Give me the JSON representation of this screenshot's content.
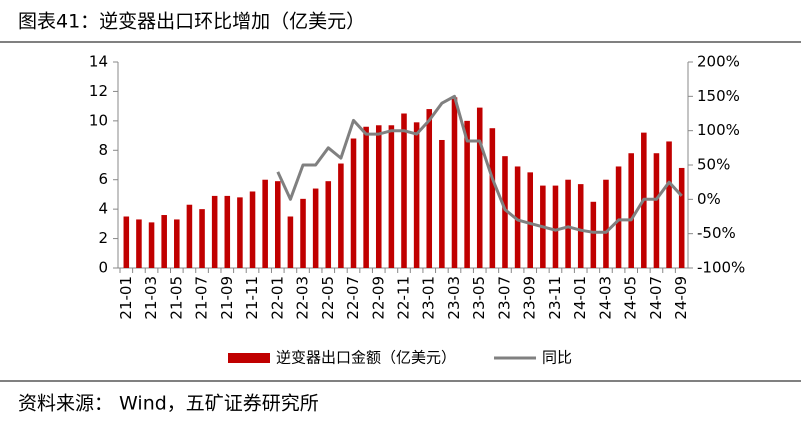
{
  "chart_data": {
    "type": "bar_line",
    "title": "图表41：逆变器出口环比增加（亿美元）",
    "source": "资料来源： Wind，五矿证券研究所",
    "categories": [
      "21-01",
      null,
      "21-03",
      null,
      "21-05",
      null,
      "21-07",
      null,
      "21-09",
      null,
      "21-11",
      null,
      "22-01",
      null,
      "22-03",
      null,
      "22-05",
      null,
      "22-07",
      null,
      "22-09",
      null,
      "22-11",
      null,
      "23-01",
      null,
      "23-03",
      null,
      "23-05",
      null,
      "23-07",
      null,
      "23-09",
      null,
      "23-11",
      null,
      "24-01",
      null,
      "24-03",
      null,
      "24-05",
      null,
      "24-07",
      null,
      "24-09"
    ],
    "series": [
      {
        "name": "逆变器出口金额（亿美元）",
        "color": "#c00000",
        "type": "bar",
        "values": [
          3.5,
          3.3,
          3.1,
          3.6,
          3.3,
          4.3,
          4.0,
          4.9,
          4.9,
          4.8,
          5.2,
          6.0,
          5.9,
          3.5,
          4.7,
          5.4,
          5.9,
          7.1,
          8.8,
          9.6,
          9.7,
          9.7,
          10.5,
          9.9,
          10.8,
          8.7,
          11.6,
          10.0,
          10.9,
          9.5,
          7.6,
          6.9,
          6.5,
          5.6,
          5.6,
          6.0,
          5.7,
          4.5,
          6.0,
          6.9,
          7.8,
          9.2,
          7.8,
          8.6,
          6.8
        ]
      },
      {
        "name": "同比",
        "color": "#808080",
        "type": "line",
        "axis": "y2",
        "values": [
          null,
          null,
          null,
          null,
          null,
          null,
          null,
          null,
          null,
          null,
          null,
          null,
          40,
          0,
          50,
          50,
          75,
          60,
          115,
          95,
          95,
          100,
          100,
          95,
          115,
          140,
          150,
          85,
          85,
          30,
          -15,
          -30,
          -35,
          -40,
          -45,
          -40,
          -45,
          -48,
          -48,
          -30,
          -30,
          0,
          0,
          25,
          5
        ]
      }
    ],
    "ylim": [
      0,
      14
    ],
    "yticks": [
      0,
      2,
      4,
      6,
      8,
      10,
      12,
      14
    ],
    "y2lim": [
      -100,
      200
    ],
    "y2ticks": [
      {
        "value": -100,
        "label": "-100%"
      },
      {
        "value": -50,
        "label": "-50%"
      },
      {
        "value": 0,
        "label": "0%"
      },
      {
        "value": 50,
        "label": "50%"
      },
      {
        "value": 100,
        "label": "100%"
      },
      {
        "value": 150,
        "label": "150%"
      },
      {
        "value": 200,
        "label": "200%"
      }
    ],
    "legend": "bottom"
  }
}
